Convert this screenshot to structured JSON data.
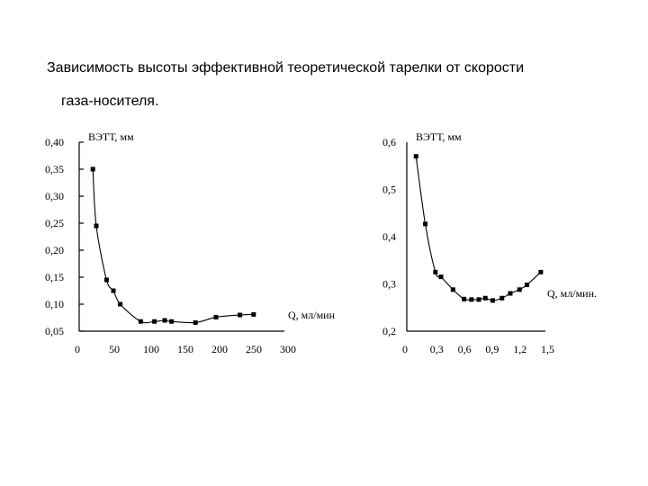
{
  "title": {
    "line1": "Зависимость высоты эффективной теоретической тарелки от скорости",
    "line2": "газа-носителя."
  },
  "chart_data": [
    {
      "type": "line",
      "ylabel": "ВЭТТ, мм",
      "xlabel": "Q, мл/мин",
      "x_ticks": [
        "0",
        "50",
        "100",
        "150",
        "200",
        "250",
        "300"
      ],
      "y_ticks": [
        "0,05",
        "0,10",
        "0,15",
        "0,20",
        "0,25",
        "0,30",
        "0,35",
        "0,40"
      ],
      "xlim": [
        0,
        300
      ],
      "ylim": [
        0.05,
        0.4
      ],
      "series": [
        {
          "x": [
            20,
            25,
            40,
            50,
            60,
            90,
            110,
            125,
            135,
            170,
            200,
            235,
            255
          ],
          "y": [
            0.35,
            0.245,
            0.145,
            0.125,
            0.1,
            0.068,
            0.068,
            0.07,
            0.068,
            0.066,
            0.076,
            0.08,
            0.081
          ]
        }
      ]
    },
    {
      "type": "line",
      "ylabel": "ВЭТТ, мм",
      "xlabel": "Q, мл/мин.",
      "x_ticks": [
        "0",
        "0,3",
        "0,6",
        "0,9",
        "1,2",
        "1,5"
      ],
      "y_ticks": [
        "0,2",
        "0,3",
        "0,4",
        "0,5",
        "0,6"
      ],
      "xlim": [
        0,
        1.5
      ],
      "ylim": [
        0.2,
        0.6
      ],
      "series": [
        {
          "x": [
            0.1,
            0.2,
            0.31,
            0.37,
            0.5,
            0.62,
            0.7,
            0.78,
            0.85,
            0.93,
            1.03,
            1.12,
            1.22,
            1.3,
            1.45
          ],
          "y": [
            0.57,
            0.427,
            0.325,
            0.315,
            0.288,
            0.268,
            0.267,
            0.267,
            0.27,
            0.265,
            0.27,
            0.28,
            0.288,
            0.298,
            0.325
          ]
        }
      ]
    }
  ]
}
